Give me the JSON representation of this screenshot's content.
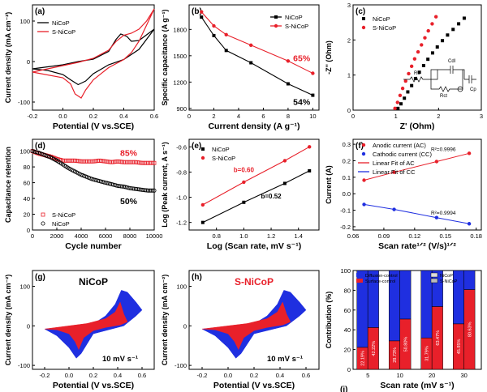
{
  "colors": {
    "black": "#000000",
    "red": "#e8202a",
    "blue": "#1f2fe0",
    "axis": "#000000"
  },
  "chart_data": [
    {
      "id": "a",
      "type": "line",
      "panel_label": "(a)",
      "xlabel": "Potential (V vs.SCE)",
      "ylabel": "Current density (mA cm⁻²)",
      "xlim": [
        -0.2,
        0.6
      ],
      "ylim": [
        -120,
        140
      ],
      "xticks": [
        "-0.2",
        "0.0",
        "0.2",
        "0.4",
        "0.6"
      ],
      "yticks": [
        "-100",
        "0",
        "100"
      ],
      "legend": "top-left",
      "series": [
        {
          "name": "NiCoP",
          "color": "#000000",
          "upper": [
            [
              -0.2,
              -18
            ],
            [
              0,
              -8
            ],
            [
              0.1,
              0
            ],
            [
              0.2,
              6
            ],
            [
              0.3,
              25
            ],
            [
              0.35,
              55
            ],
            [
              0.38,
              68
            ],
            [
              0.42,
              62
            ],
            [
              0.45,
              50
            ],
            [
              0.5,
              52
            ],
            [
              0.55,
              66
            ],
            [
              0.6,
              80
            ]
          ],
          "lower": [
            [
              0.6,
              80
            ],
            [
              0.5,
              30
            ],
            [
              0.4,
              5
            ],
            [
              0.3,
              -8
            ],
            [
              0.2,
              -30
            ],
            [
              0.15,
              -48
            ],
            [
              0.1,
              -57
            ],
            [
              0.05,
              -45
            ],
            [
              0,
              -32
            ],
            [
              -0.1,
              -22
            ],
            [
              -0.2,
              -18
            ]
          ]
        },
        {
          "name": "S-NiCoP",
          "color": "#e8202a",
          "upper": [
            [
              -0.2,
              -26
            ],
            [
              0,
              -10
            ],
            [
              0.1,
              -2
            ],
            [
              0.2,
              8
            ],
            [
              0.3,
              28
            ],
            [
              0.35,
              50
            ],
            [
              0.4,
              65
            ],
            [
              0.45,
              70
            ],
            [
              0.5,
              80
            ],
            [
              0.55,
              100
            ],
            [
              0.6,
              130
            ]
          ],
          "lower": [
            [
              0.6,
              130
            ],
            [
              0.5,
              50
            ],
            [
              0.45,
              22
            ],
            [
              0.4,
              5
            ],
            [
              0.3,
              -15
            ],
            [
              0.2,
              -45
            ],
            [
              0.15,
              -70
            ],
            [
              0.12,
              -90
            ],
            [
              0.08,
              -80
            ],
            [
              0.05,
              -55
            ],
            [
              0,
              -40
            ],
            [
              -0.2,
              -26
            ]
          ]
        }
      ]
    },
    {
      "id": "b",
      "type": "line",
      "panel_label": "(b)",
      "xlabel": "Current density (A g⁻¹)",
      "ylabel": "Specific capacitance (A g⁻¹)",
      "xlim": [
        0,
        10.5
      ],
      "ylim": [
        880,
        2080
      ],
      "xticks": [
        "0",
        "2",
        "4",
        "6",
        "8",
        "10"
      ],
      "yticks": [
        "900",
        "1200",
        "1500",
        "1800"
      ],
      "legend": "top-right",
      "annotations": [
        {
          "text": "65%",
          "color": "#e8202a",
          "x": 9.1,
          "y": 1440
        },
        {
          "text": "54%",
          "color": "#000000",
          "x": 9.1,
          "y": 940
        }
      ],
      "series": [
        {
          "name": "NiCoP",
          "color": "#000000",
          "marker": "square",
          "x": [
            1,
            2,
            3,
            5,
            8,
            10
          ],
          "y": [
            1940,
            1730,
            1560,
            1420,
            1180,
            1050
          ]
        },
        {
          "name": "S-NiCoP",
          "color": "#e8202a",
          "marker": "circle",
          "x": [
            1,
            2,
            3,
            5,
            8,
            10
          ],
          "y": [
            2000,
            1840,
            1740,
            1620,
            1440,
            1300
          ]
        }
      ]
    },
    {
      "id": "c",
      "type": "scatter",
      "panel_label": "(c)",
      "xlabel": "Z' (Ohm)",
      "ylabel": "-Z'' (Ohm)",
      "xlim": [
        0,
        3
      ],
      "ylim": [
        0,
        3
      ],
      "xticks": [
        "0",
        "1",
        "2",
        "3"
      ],
      "yticks": [
        "0",
        "1",
        "2",
        "3"
      ],
      "legend": "top-left",
      "inset_labels": [
        "Rs",
        "Cdl",
        "Rct",
        "Cp"
      ],
      "series": [
        {
          "name": "NiCoP",
          "color": "#000000",
          "marker": "square",
          "x": [
            1.05,
            1.12,
            1.2,
            1.28,
            1.37,
            1.46,
            1.55,
            1.65,
            1.75,
            1.86,
            1.97,
            2.09,
            2.21,
            2.34,
            2.47,
            2.6
          ],
          "y": [
            0.05,
            0.18,
            0.34,
            0.52,
            0.7,
            0.9,
            1.08,
            1.27,
            1.45,
            1.63,
            1.8,
            1.98,
            2.14,
            2.3,
            2.46,
            2.62
          ]
        },
        {
          "name": "S-NiCoP",
          "color": "#e8202a",
          "marker": "circle",
          "x": [
            0.98,
            1.04,
            1.1,
            1.16,
            1.23,
            1.3,
            1.37,
            1.44,
            1.52,
            1.6,
            1.68,
            1.76,
            1.85,
            1.94
          ],
          "y": [
            0.05,
            0.22,
            0.42,
            0.62,
            0.83,
            1.04,
            1.25,
            1.46,
            1.66,
            1.86,
            2.06,
            2.26,
            2.46,
            2.66
          ]
        }
      ]
    },
    {
      "id": "d",
      "type": "scatter",
      "panel_label": "(d)",
      "xlabel": "Cycle number",
      "ylabel": "Capacitance retention",
      "xlim": [
        0,
        10000
      ],
      "ylim": [
        0,
        115
      ],
      "xticks": [
        "0",
        "2000",
        "4000",
        "6000",
        "8000",
        "10000"
      ],
      "yticks": [
        "0",
        "20",
        "40",
        "60",
        "80",
        "100"
      ],
      "legend": "bottom-left",
      "annotations": [
        {
          "text": "85%",
          "color": "#e8202a",
          "x": 7900,
          "y": 94
        },
        {
          "text": "50%",
          "color": "#000000",
          "x": 7900,
          "y": 33
        }
      ],
      "series": [
        {
          "name": "S-NiCoP",
          "color": "#e8202a",
          "marker": "square-open",
          "x": [
            0,
            500,
            1000,
            1500,
            2000,
            2500,
            3000,
            3500,
            4000,
            4500,
            5000,
            5500,
            6000,
            6500,
            7000,
            7500,
            8000,
            8500,
            9000,
            9500,
            10000
          ],
          "y": [
            100,
            97,
            95,
            93,
            90,
            88,
            88,
            88,
            87,
            87,
            87,
            88,
            87,
            86,
            87,
            86,
            86,
            86,
            85,
            85,
            85
          ]
        },
        {
          "name": "NiCoP",
          "color": "#000000",
          "marker": "circle-open",
          "x": [
            0,
            500,
            1000,
            1500,
            2000,
            2500,
            3000,
            3500,
            4000,
            4500,
            5000,
            5500,
            6000,
            6500,
            7000,
            7500,
            8000,
            8500,
            9000,
            9500,
            10000
          ],
          "y": [
            100,
            98,
            95,
            92,
            88,
            83,
            78,
            74,
            70,
            67,
            64,
            62,
            60,
            58,
            56,
            55,
            53,
            52,
            51,
            50,
            50
          ]
        }
      ]
    },
    {
      "id": "e",
      "type": "scatter",
      "panel_label": "(e)",
      "xlabel": "Log (Scan rate, mV s⁻¹)",
      "ylabel": "Log (Peak current, A s⁻¹)",
      "xlim": [
        0.6,
        1.55
      ],
      "ylim": [
        -1.26,
        -0.54
      ],
      "xticks": [
        "0.8",
        "1.0",
        "1.2",
        "1.4"
      ],
      "yticks": [
        "-1.2",
        "-1.0",
        "-0.8",
        "-0.6"
      ],
      "legend": "top-left",
      "annotations": [
        {
          "text": "b=0.60",
          "color": "#e8202a",
          "x": 1.0,
          "y": -0.8
        },
        {
          "text": "b=0.52",
          "color": "#000000",
          "x": 1.2,
          "y": -1.01
        }
      ],
      "series": [
        {
          "name": "NiCoP",
          "color": "#000000",
          "marker": "square",
          "x": [
            0.7,
            1.0,
            1.3,
            1.48
          ],
          "y": [
            -1.2,
            -1.04,
            -0.89,
            -0.79
          ]
        },
        {
          "name": "S-NiCoP",
          "color": "#e8202a",
          "marker": "circle",
          "x": [
            0.7,
            1.0,
            1.3,
            1.48
          ],
          "y": [
            -1.06,
            -0.88,
            -0.71,
            -0.6
          ]
        }
      ]
    },
    {
      "id": "f",
      "type": "scatter",
      "panel_label": "(f)",
      "xlabel": "Scan rate¹ᐟ² (V/s)¹ᐟ²",
      "ylabel": "Current (A)",
      "xlim": [
        0.06,
        0.185
      ],
      "ylim": [
        -0.22,
        0.33
      ],
      "xticks": [
        "0.06",
        "0.09",
        "0.12",
        "0.15",
        "0.18"
      ],
      "yticks": [
        "-0.2",
        "-0.1",
        "0.0",
        "0.1",
        "0.2",
        "0.3"
      ],
      "legend": "top-left",
      "legend_entries": [
        "Anodic current (AC)",
        "Cathodic current (CC)",
        "Linear Fit of AC",
        "Linear Fit of CC"
      ],
      "annotations": [
        {
          "text": "R²=0.9996",
          "color": "#000000",
          "x": 0.148,
          "y": 0.258
        },
        {
          "text": "R²=0.9994",
          "color": "#000000",
          "x": 0.148,
          "y": -0.127
        }
      ],
      "series": [
        {
          "name": "Anodic current (AC)",
          "color": "#e8202a",
          "marker": "circle",
          "x": [
            0.0707,
            0.1,
            0.1414,
            0.1732
          ],
          "y": [
            0.082,
            0.13,
            0.195,
            0.245
          ]
        },
        {
          "name": "Cathodic current (CC)",
          "color": "#1f2fe0",
          "marker": "circle",
          "x": [
            0.0707,
            0.1,
            0.1414,
            0.1732
          ],
          "y": [
            -0.065,
            -0.095,
            -0.145,
            -0.182
          ]
        }
      ]
    },
    {
      "id": "g",
      "type": "area",
      "panel_label": "(g)",
      "title": "NiCoP",
      "scan_label": "10 mV s⁻¹",
      "xlabel": "Potential (V vs.SCE)",
      "ylabel": "Current density (mA cm⁻²)",
      "xlim": [
        -0.3,
        0.7
      ],
      "ylim": [
        -110,
        140
      ],
      "xticks": [
        "-0.2",
        "0.0",
        "0.2",
        "0.4",
        "0.6"
      ],
      "yticks": [
        "-100",
        "0",
        "100"
      ]
    },
    {
      "id": "h",
      "type": "area",
      "panel_label": "(h)",
      "title": "S-NiCoP",
      "scan_label": "10 mV s⁻¹",
      "xlabel": "Potential (V vs.SCE)",
      "ylabel": "Current density (mA cm⁻²)",
      "xlim": [
        -0.3,
        0.7
      ],
      "ylim": [
        -110,
        140
      ],
      "xticks": [
        "-0.2",
        "0.0",
        "0.2",
        "0.4",
        "0.6"
      ],
      "yticks": [
        "-100",
        "0",
        "100"
      ]
    },
    {
      "id": "i",
      "type": "bar",
      "panel_label": "(i)",
      "xlabel": "Scan rate (mV s⁻¹)",
      "ylabel": "Contribution (%)",
      "ylim": [
        0,
        100
      ],
      "categories": [
        "5",
        "10",
        "20",
        "30"
      ],
      "yticks": [
        "0",
        "20",
        "40",
        "60",
        "80",
        "100"
      ],
      "legend_entries": [
        "Diffusion-control",
        "Surface-control",
        "NiCoP",
        "S-NiCoP"
      ],
      "series": [
        {
          "name": "NiCoP",
          "surface": [
            22.19,
            28.73,
            31.79,
            45.95
          ]
        },
        {
          "name": "S-NiCoP",
          "surface": [
            42.22,
            50.8,
            63.47,
            80.63
          ]
        }
      ],
      "labels": {
        "NiCoP": [
          "22.19%",
          "28.73%",
          "31.79%",
          "45.95%"
        ],
        "S-NiCoP": [
          "42.22%",
          "50.80%",
          "63.47%",
          "80.63%"
        ]
      }
    }
  ]
}
